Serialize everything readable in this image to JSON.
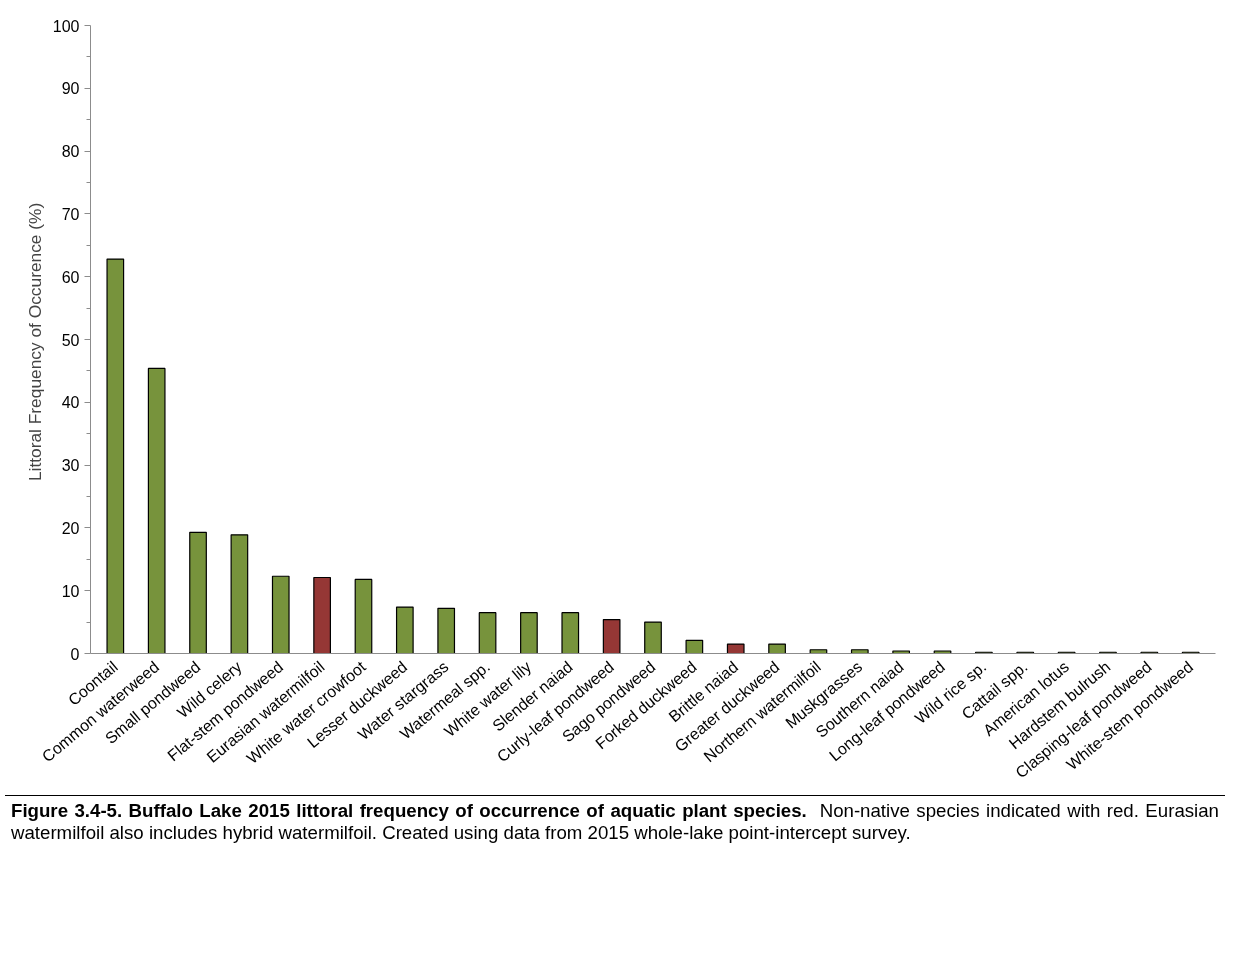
{
  "chart_data": {
    "type": "bar",
    "title": "Figure 3.4-5.  Buffalo Lake 2015 littoral frequency of occurrence of aquatic plant species.",
    "annotations": [
      "Non-native species indicated with red.  Eurasian watermilfoil also includes hybrid watermilfoil.  Created using data from 2015 whole-lake point-intercept survey."
    ],
    "ylabel": "Littoral Frequency  of Occurence (%)",
    "categories": [
      "Coontail",
      "Common waterweed",
      "Small pondweed",
      "Wild celery",
      "Flat-stem pondweed",
      "Eurasian watermilfoil",
      "White water crowfoot",
      "Lesser duckweed",
      "Water stargrass",
      "Watermeal spp.",
      "White water lily",
      "Slender naiad",
      "Curly-leaf pondweed",
      "Sago pondweed",
      "Forked duckweed",
      "Brittle naiad",
      "Greater duckweed",
      "Northern watermilfoil",
      "Muskgrasses",
      "Southern naiad",
      "Long-leaf pondweed",
      "Wild rice sp.",
      "Cattail spp.",
      "American lotus",
      "Hardstem bulrush",
      "Clasping-leaf pondweed",
      "White-stem pondweed"
    ],
    "values": [
      62.8,
      45.4,
      19.3,
      18.9,
      12.3,
      12.1,
      11.8,
      7.4,
      7.2,
      6.5,
      6.5,
      6.5,
      5.4,
      5.0,
      2.1,
      1.5,
      1.5,
      0.6,
      0.6,
      0.4,
      0.4,
      0.2,
      0.2,
      0.2,
      0.2,
      0.2,
      0.2
    ],
    "colors": [
      "#77933c",
      "#77933c",
      "#77933c",
      "#77933c",
      "#77933c",
      "#953735",
      "#77933c",
      "#77933c",
      "#77933c",
      "#77933c",
      "#77933c",
      "#77933c",
      "#953735",
      "#77933c",
      "#77933c",
      "#953735",
      "#77933c",
      "#77933c",
      "#77933c",
      "#77933c",
      "#77933c",
      "#77933c",
      "#77933c",
      "#77933c",
      "#77933c",
      "#77933c",
      "#77933c"
    ],
    "ylim": [
      0,
      100
    ],
    "yticks": [
      0,
      10,
      20,
      30,
      40,
      50,
      60,
      70,
      80,
      90,
      100
    ],
    "grid": false
  }
}
